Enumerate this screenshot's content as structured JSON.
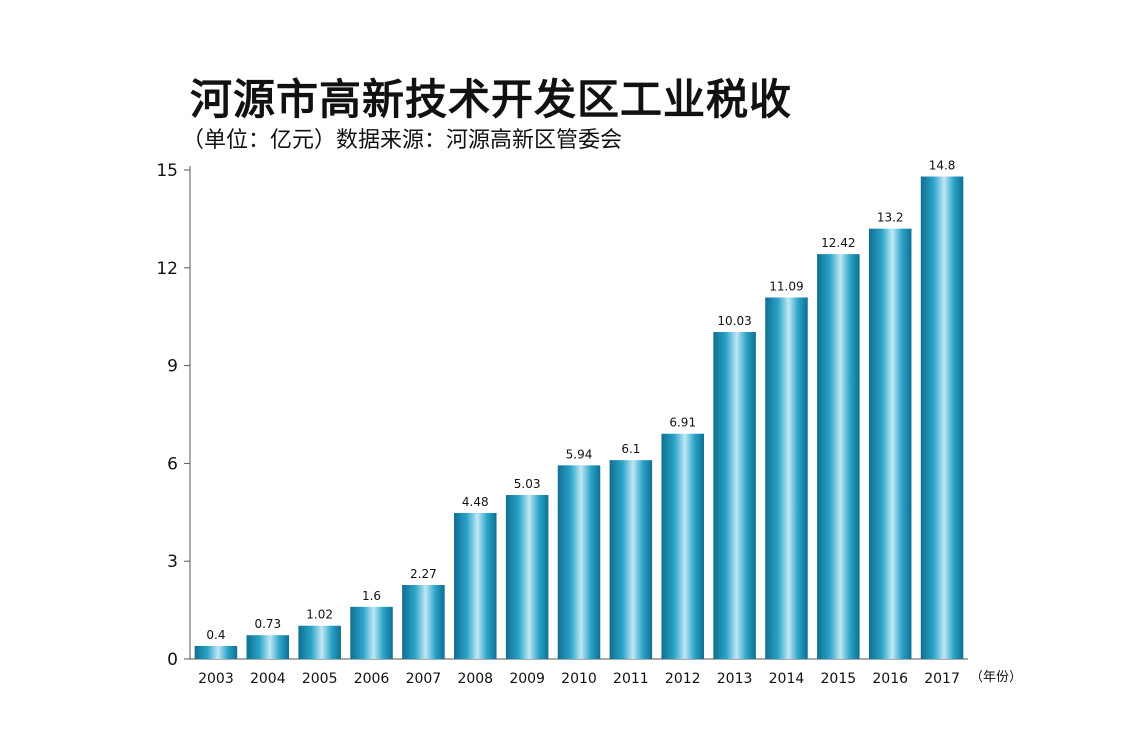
{
  "chart_data": {
    "type": "bar",
    "title": "河源市高新技术开发区工业税收",
    "subtitle": "（单位：亿元）数据来源：河源高新区管委会",
    "x_unit_label": "（年份）",
    "categories": [
      "2003",
      "2004",
      "2005",
      "2006",
      "2007",
      "2008",
      "2009",
      "2010",
      "2011",
      "2012",
      "2013",
      "2014",
      "2015",
      "2016",
      "2017"
    ],
    "values": [
      0.4,
      0.73,
      1.02,
      1.6,
      2.27,
      4.48,
      5.03,
      5.94,
      6.1,
      6.91,
      10.03,
      11.09,
      12.42,
      13.2,
      14.8
    ],
    "data_labels": [
      "0.4",
      "0.73",
      "1.02",
      "1.6",
      "2.27",
      "4.48",
      "5.03",
      "5.94",
      "6.1",
      "6.91",
      "10.03",
      "11.09",
      "12.42",
      "13.2",
      "14.8"
    ],
    "ylim": [
      0,
      15
    ],
    "yticks": [
      0,
      3,
      6,
      9,
      12,
      15
    ],
    "grid": false,
    "legend": "none",
    "colors": {
      "bar_dark": "#0f6f91",
      "bar_mid": "#2aa3c8",
      "bar_light": "#bfe8f5",
      "axis": "#555555"
    }
  }
}
